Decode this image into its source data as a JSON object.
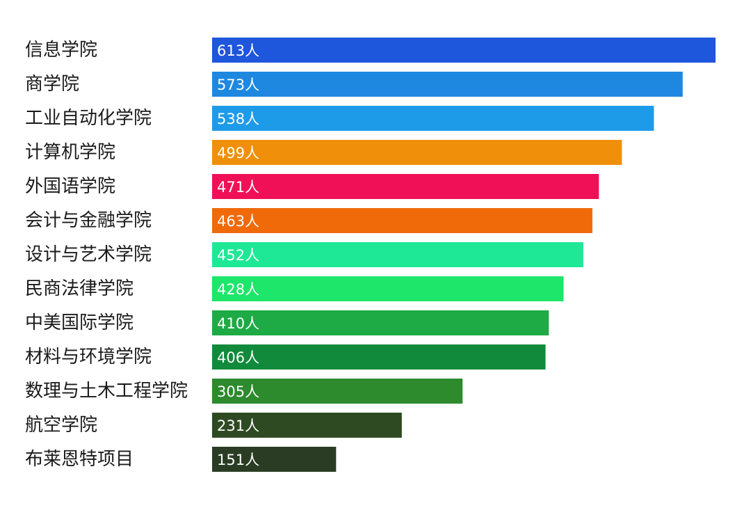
{
  "chart_data": {
    "type": "bar",
    "orientation": "horizontal",
    "categories": [
      "信息学院",
      "商学院",
      "工业自动化学院",
      "计算机学院",
      "外国语学院",
      "会计与金融学院",
      "设计与艺术学院",
      "民商法律学院",
      "中美国际学院",
      "材料与环境学院",
      "数理与土木工程学院",
      "航空学院",
      "布莱恩特项目"
    ],
    "values": [
      613,
      573,
      538,
      499,
      471,
      463,
      452,
      428,
      410,
      406,
      305,
      231,
      151
    ],
    "value_labels": [
      "613人",
      "573人",
      "538人",
      "499人",
      "471人",
      "463人",
      "452人",
      "428人",
      "410人",
      "406人",
      "305人",
      "231人",
      "151人"
    ],
    "colors": [
      "#1e56dc",
      "#1e88e0",
      "#1e9be8",
      "#f0900a",
      "#f01058",
      "#f06a0a",
      "#1ee896",
      "#1ee66a",
      "#1eaa45",
      "#128a3c",
      "#2d8a2d",
      "#2e4a22",
      "#2a3d24"
    ],
    "xlim": [
      0,
      613
    ],
    "title": "",
    "xlabel": "",
    "ylabel": "",
    "grid": false,
    "legend": "none"
  }
}
